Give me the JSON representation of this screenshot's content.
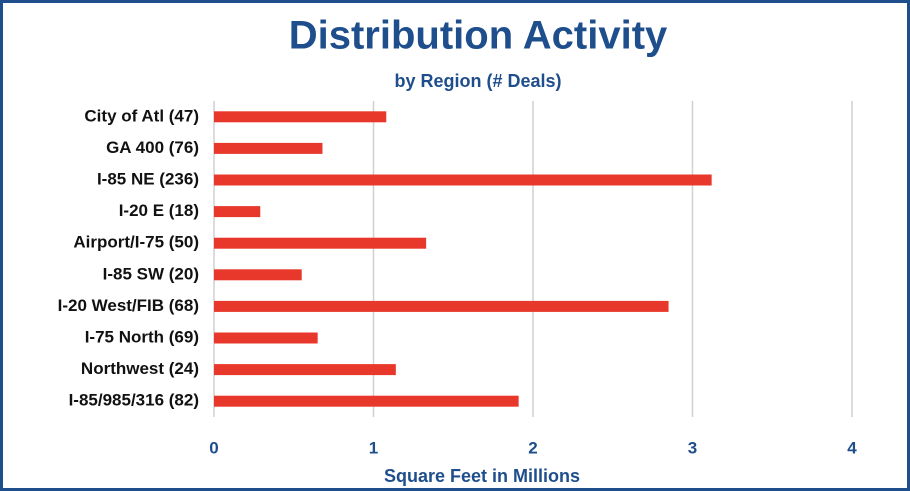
{
  "chart_data": {
    "type": "bar",
    "orientation": "horizontal",
    "title": "Distribution Activity",
    "subtitle": "by Region  (# Deals)",
    "x_label": "Square Feet in Millions",
    "categories": [
      "City of Atl (47)",
      "GA 400 (76)",
      "I-85 NE (236)",
      "I-20 E (18)",
      "Airport/I-75 (50)",
      "I-85 SW (20)",
      "I-20 West/FIB (68)",
      "I-75 North (69)",
      "Northwest (24)",
      "I-85/985/316 (82)"
    ],
    "values": [
      1.08,
      0.68,
      3.12,
      0.29,
      1.33,
      0.55,
      2.85,
      0.65,
      1.14,
      1.91
    ],
    "color": "#e8382b",
    "xlim": [
      0,
      4
    ],
    "xticks": [
      0,
      1,
      2,
      3,
      4
    ],
    "grid": true
  }
}
